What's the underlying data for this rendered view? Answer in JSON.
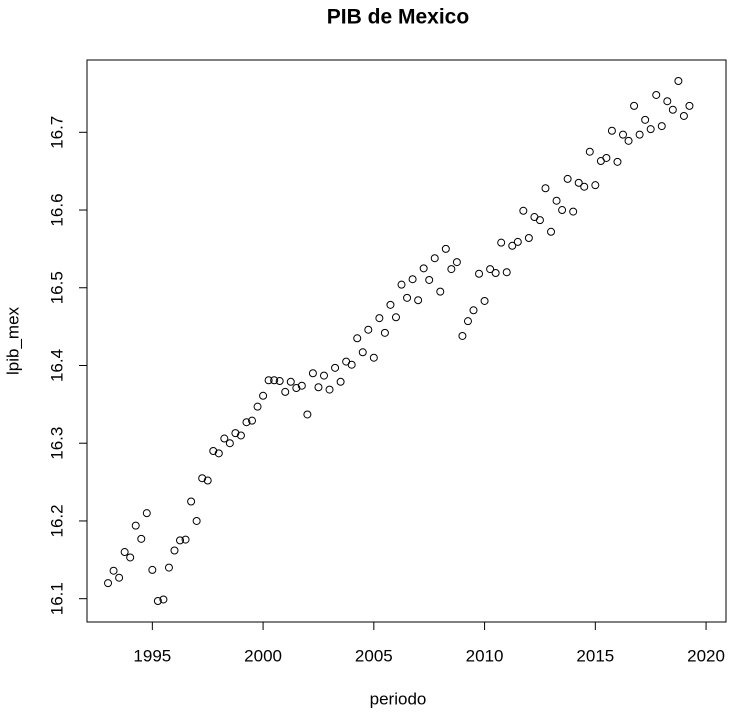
{
  "chart_data": {
    "type": "scatter",
    "title": "PIB de Mexico",
    "x_label": "periodo",
    "y_label": "lpib_mex",
    "xlim": [
      1992.05,
      2020.9
    ],
    "ylim": [
      16.07,
      16.793
    ],
    "xticks": [
      1995,
      2000,
      2005,
      2010,
      2015,
      2020
    ],
    "yticks": [
      16.1,
      16.2,
      16.3,
      16.4,
      16.5,
      16.6,
      16.7
    ],
    "color": "#000000",
    "x": [
      1993,
      1993.25,
      1993.5,
      1993.75,
      1994,
      1994.25,
      1994.5,
      1994.75,
      1995,
      1995.25,
      1995.5,
      1995.75,
      1996,
      1996.25,
      1996.5,
      1996.75,
      1997,
      1997.25,
      1997.5,
      1997.75,
      1998,
      1998.25,
      1998.5,
      1998.75,
      1999,
      1999.25,
      1999.5,
      1999.75,
      2000,
      2000.25,
      2000.5,
      2000.75,
      2001,
      2001.25,
      2001.5,
      2001.75,
      2002,
      2002.25,
      2002.5,
      2002.75,
      2003,
      2003.25,
      2003.5,
      2003.75,
      2004,
      2004.25,
      2004.5,
      2004.75,
      2005,
      2005.25,
      2005.5,
      2005.75,
      2006,
      2006.25,
      2006.5,
      2006.75,
      2007,
      2007.25,
      2007.5,
      2007.75,
      2008,
      2008.25,
      2008.5,
      2008.75,
      2009,
      2009.25,
      2009.5,
      2009.75,
      2010,
      2010.25,
      2010.5,
      2010.75,
      2011,
      2011.25,
      2011.5,
      2011.75,
      2012,
      2012.25,
      2012.5,
      2012.75,
      2013,
      2013.25,
      2013.5,
      2013.75,
      2014,
      2014.25,
      2014.5,
      2014.75,
      2015,
      2015.25,
      2015.5,
      2015.75,
      2016,
      2016.25,
      2016.5,
      2016.75,
      2017,
      2017.25,
      2017.5,
      2017.75,
      2018,
      2018.25,
      2018.5,
      2018.75,
      2019,
      2019.25
    ],
    "values": [
      16.12,
      16.136,
      16.127,
      16.16,
      16.153,
      16.194,
      16.177,
      16.21,
      16.137,
      16.097,
      16.099,
      16.14,
      16.162,
      16.175,
      16.176,
      16.225,
      16.2,
      16.255,
      16.252,
      16.29,
      16.287,
      16.306,
      16.3,
      16.313,
      16.31,
      16.327,
      16.329,
      16.347,
      16.361,
      16.381,
      16.381,
      16.38,
      16.366,
      16.379,
      16.371,
      16.374,
      16.337,
      16.39,
      16.372,
      16.387,
      16.369,
      16.397,
      16.379,
      16.405,
      16.401,
      16.435,
      16.417,
      16.446,
      16.41,
      16.461,
      16.442,
      16.478,
      16.462,
      16.504,
      16.487,
      16.511,
      16.484,
      16.525,
      16.51,
      16.538,
      16.495,
      16.55,
      16.524,
      16.533,
      16.438,
      16.457,
      16.471,
      16.518,
      16.483,
      16.524,
      16.519,
      16.558,
      16.52,
      16.554,
      16.559,
      16.599,
      16.564,
      16.591,
      16.587,
      16.628,
      16.572,
      16.612,
      16.6,
      16.64,
      16.598,
      16.635,
      16.63,
      16.675,
      16.632,
      16.663,
      16.667,
      16.702,
      16.662,
      16.697,
      16.689,
      16.734,
      16.697,
      16.716,
      16.704,
      16.748,
      16.708,
      16.74,
      16.729,
      16.766,
      16.721,
      16.734
    ]
  }
}
